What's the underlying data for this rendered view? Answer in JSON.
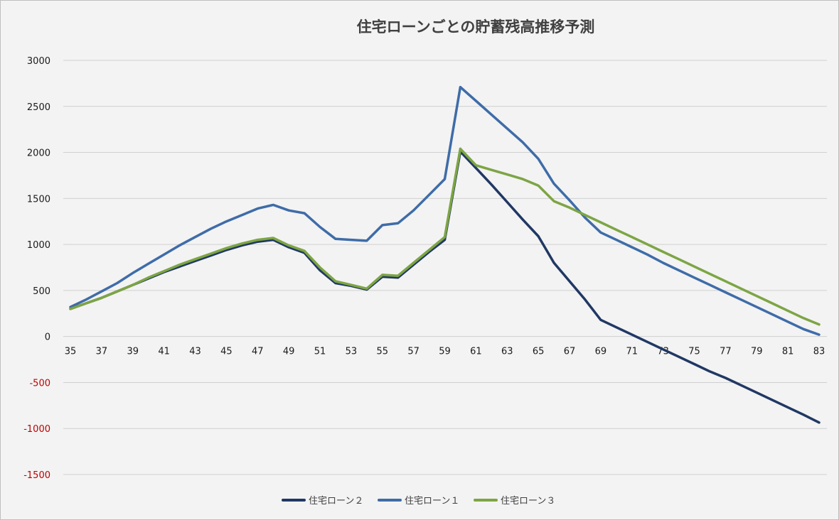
{
  "chart_data": {
    "type": "line",
    "title": "住宅ローンごとの貯蓄残高推移予測",
    "xlabel": "",
    "ylabel": "",
    "ylim": [
      -1500,
      3000
    ],
    "yticks": [
      3000,
      2500,
      2000,
      1500,
      1000,
      500,
      0,
      -500,
      -1000,
      -1500
    ],
    "negative_tick_color": "#c00000",
    "xlim": [
      35,
      83
    ],
    "xticks": [
      35,
      37,
      39,
      41,
      43,
      45,
      47,
      49,
      51,
      53,
      55,
      57,
      59,
      61,
      63,
      65,
      67,
      69,
      71,
      73,
      75,
      77,
      79,
      81,
      83
    ],
    "grid": true,
    "legend_position": "bottom",
    "legend_order": [
      0,
      1,
      2
    ],
    "draw_order": [
      1,
      0,
      2
    ],
    "series": [
      {
        "name": "住宅ローン２",
        "color": "#203864",
        "points": [
          [
            35,
            300
          ],
          [
            36,
            360
          ],
          [
            37,
            420
          ],
          [
            38,
            490
          ],
          [
            39,
            560
          ],
          [
            40,
            630
          ],
          [
            41,
            700
          ],
          [
            42,
            760
          ],
          [
            43,
            820
          ],
          [
            44,
            880
          ],
          [
            45,
            940
          ],
          [
            46,
            990
          ],
          [
            47,
            1030
          ],
          [
            48,
            1050
          ],
          [
            49,
            970
          ],
          [
            50,
            910
          ],
          [
            51,
            720
          ],
          [
            52,
            580
          ],
          [
            53,
            550
          ],
          [
            54,
            510
          ],
          [
            55,
            650
          ],
          [
            56,
            640
          ],
          [
            57,
            780
          ],
          [
            58,
            920
          ],
          [
            59,
            1050
          ],
          [
            60,
            2010
          ],
          [
            61,
            1830
          ],
          [
            62,
            1650
          ],
          [
            63,
            1460
          ],
          [
            64,
            1270
          ],
          [
            65,
            1090
          ],
          [
            66,
            800
          ],
          [
            67,
            600
          ],
          [
            68,
            400
          ],
          [
            69,
            180
          ],
          [
            70,
            100
          ],
          [
            71,
            20
          ],
          [
            72,
            -60
          ],
          [
            73,
            -140
          ],
          [
            74,
            -220
          ],
          [
            75,
            -300
          ],
          [
            76,
            -380
          ],
          [
            77,
            -450
          ],
          [
            78,
            -530
          ],
          [
            79,
            -610
          ],
          [
            80,
            -690
          ],
          [
            81,
            -770
          ],
          [
            82,
            -850
          ],
          [
            83,
            -935
          ]
        ]
      },
      {
        "name": "住宅ローン１",
        "color": "#3e6ca8",
        "points": [
          [
            35,
            320
          ],
          [
            36,
            400
          ],
          [
            37,
            490
          ],
          [
            38,
            580
          ],
          [
            39,
            690
          ],
          [
            40,
            790
          ],
          [
            41,
            890
          ],
          [
            42,
            990
          ],
          [
            43,
            1080
          ],
          [
            44,
            1170
          ],
          [
            45,
            1250
          ],
          [
            46,
            1320
          ],
          [
            47,
            1390
          ],
          [
            48,
            1430
          ],
          [
            49,
            1370
          ],
          [
            50,
            1340
          ],
          [
            51,
            1190
          ],
          [
            52,
            1060
          ],
          [
            53,
            1050
          ],
          [
            54,
            1040
          ],
          [
            55,
            1210
          ],
          [
            56,
            1230
          ],
          [
            57,
            1370
          ],
          [
            58,
            1540
          ],
          [
            59,
            1710
          ],
          [
            60,
            2710
          ],
          [
            61,
            2560
          ],
          [
            62,
            2410
          ],
          [
            63,
            2260
          ],
          [
            64,
            2110
          ],
          [
            65,
            1930
          ],
          [
            66,
            1660
          ],
          [
            67,
            1480
          ],
          [
            68,
            1290
          ],
          [
            69,
            1130
          ],
          [
            70,
            1050
          ],
          [
            71,
            970
          ],
          [
            72,
            890
          ],
          [
            73,
            800
          ],
          [
            74,
            720
          ],
          [
            75,
            640
          ],
          [
            76,
            560
          ],
          [
            77,
            480
          ],
          [
            78,
            400
          ],
          [
            79,
            320
          ],
          [
            80,
            240
          ],
          [
            81,
            160
          ],
          [
            82,
            80
          ],
          [
            83,
            20
          ]
        ]
      },
      {
        "name": "住宅ローン３",
        "color": "#7da544",
        "points": [
          [
            35,
            300
          ],
          [
            36,
            360
          ],
          [
            37,
            420
          ],
          [
            38,
            490
          ],
          [
            39,
            560
          ],
          [
            40,
            640
          ],
          [
            41,
            710
          ],
          [
            42,
            780
          ],
          [
            43,
            840
          ],
          [
            44,
            900
          ],
          [
            45,
            960
          ],
          [
            46,
            1010
          ],
          [
            47,
            1050
          ],
          [
            48,
            1070
          ],
          [
            49,
            990
          ],
          [
            50,
            930
          ],
          [
            51,
            750
          ],
          [
            52,
            600
          ],
          [
            53,
            560
          ],
          [
            54,
            520
          ],
          [
            55,
            670
          ],
          [
            56,
            660
          ],
          [
            57,
            800
          ],
          [
            58,
            940
          ],
          [
            59,
            1080
          ],
          [
            60,
            2040
          ],
          [
            61,
            1860
          ],
          [
            62,
            1810
          ],
          [
            63,
            1760
          ],
          [
            64,
            1710
          ],
          [
            65,
            1640
          ],
          [
            66,
            1470
          ],
          [
            67,
            1400
          ],
          [
            68,
            1320
          ],
          [
            69,
            1240
          ],
          [
            70,
            1160
          ],
          [
            71,
            1080
          ],
          [
            72,
            1000
          ],
          [
            73,
            920
          ],
          [
            74,
            840
          ],
          [
            75,
            760
          ],
          [
            76,
            680
          ],
          [
            77,
            600
          ],
          [
            78,
            520
          ],
          [
            79,
            440
          ],
          [
            80,
            360
          ],
          [
            81,
            280
          ],
          [
            82,
            200
          ],
          [
            83,
            130
          ]
        ]
      }
    ]
  }
}
